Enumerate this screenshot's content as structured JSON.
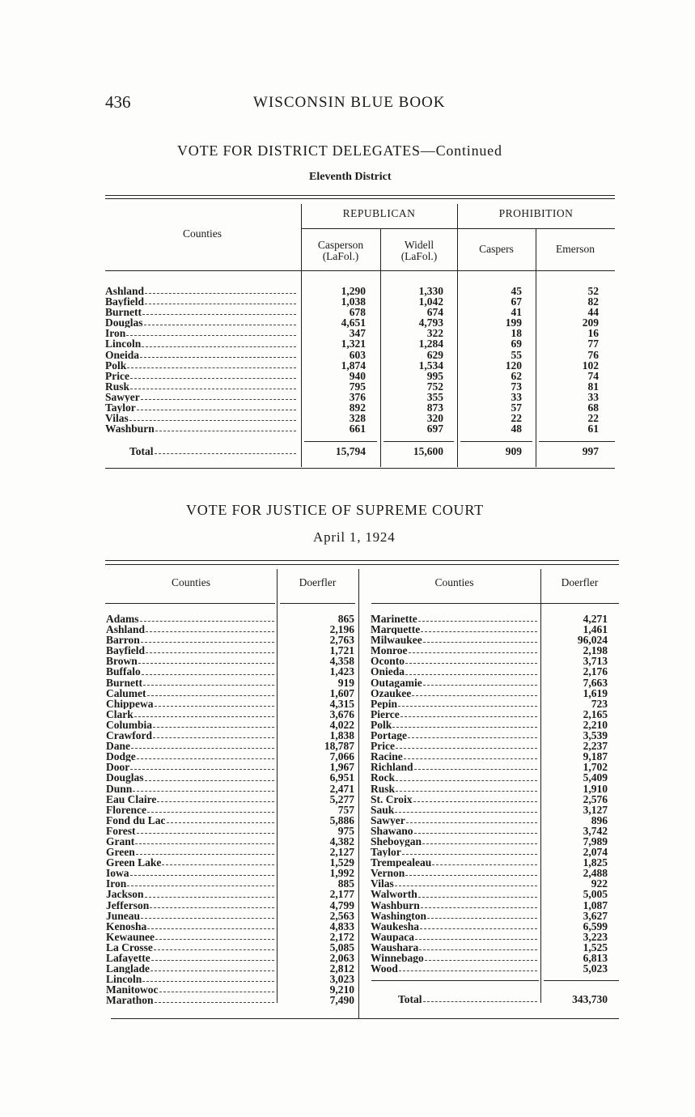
{
  "page_number": "436",
  "running_head": "WISCONSIN BLUE BOOK",
  "delegates": {
    "title": "VOTE FOR DISTRICT DELEGATES—Continued",
    "subtitle": "Eleventh District",
    "headers": {
      "counties": "Counties",
      "republican": "REPUBLICAN",
      "prohibition": "PROHIBITION",
      "casperson": "Casperson (LaFol.)",
      "widell": "Widell (LaFol.)",
      "caspers": "Caspers",
      "emerson": "Emerson"
    },
    "rows": [
      [
        "Ashland",
        "1,290",
        "1,330",
        "45",
        "52"
      ],
      [
        "Bayfield",
        "1,038",
        "1,042",
        "67",
        "82"
      ],
      [
        "Burnett",
        "678",
        "674",
        "41",
        "44"
      ],
      [
        "Douglas",
        "4,651",
        "4,793",
        "199",
        "209"
      ],
      [
        "Iron",
        "347",
        "322",
        "18",
        "16"
      ],
      [
        "Lincoln",
        "1,321",
        "1,284",
        "69",
        "77"
      ],
      [
        "Oneida",
        "603",
        "629",
        "55",
        "76"
      ],
      [
        "Polk",
        "1,874",
        "1,534",
        "120",
        "102"
      ],
      [
        "Price",
        "940",
        "995",
        "62",
        "74"
      ],
      [
        "Rusk",
        "795",
        "752",
        "73",
        "81"
      ],
      [
        "Sawyer",
        "376",
        "355",
        "33",
        "33"
      ],
      [
        "Taylor",
        "892",
        "873",
        "57",
        "68"
      ],
      [
        "Vilas",
        "328",
        "320",
        "22",
        "22"
      ],
      [
        "Washburn",
        "661",
        "697",
        "48",
        "61"
      ]
    ],
    "total": [
      "Total",
      "15,794",
      "15,600",
      "909",
      "997"
    ]
  },
  "justice": {
    "title": "VOTE FOR JUSTICE OF SUPREME COURT",
    "subtitle": "April 1, 1924",
    "headers": {
      "counties": "Counties",
      "doerfler": "Doerfler"
    },
    "left_rows": [
      [
        "Adams",
        "865"
      ],
      [
        "Ashland",
        "2,196"
      ],
      [
        "Barron",
        "2,763"
      ],
      [
        "Bayfield",
        "1,721"
      ],
      [
        "Brown",
        "4,358"
      ],
      [
        "Buffalo",
        "1,423"
      ],
      [
        "Burnett",
        "919"
      ],
      [
        "Calumet",
        "1,607"
      ],
      [
        "Chippewa",
        "4,315"
      ],
      [
        "Clark",
        "3,676"
      ],
      [
        "Columbia",
        "4,022"
      ],
      [
        "Crawford",
        "1,838"
      ],
      [
        "Dane",
        "18,787"
      ],
      [
        "Dodge",
        "7,066"
      ],
      [
        "Door",
        "1,967"
      ],
      [
        "Douglas",
        "6,951"
      ],
      [
        "Dunn",
        "2,471"
      ],
      [
        "Eau Claire",
        "5,277"
      ],
      [
        "Florence",
        "757"
      ],
      [
        "Fond du Lac",
        "5,886"
      ],
      [
        "Forest",
        "975"
      ],
      [
        "Grant",
        "4,382"
      ],
      [
        "Green",
        "2,127"
      ],
      [
        "Green Lake",
        "1,529"
      ],
      [
        "Iowa",
        "1,992"
      ],
      [
        "Iron",
        "885"
      ],
      [
        "Jackson",
        "2,177"
      ],
      [
        "Jefferson",
        "4,799"
      ],
      [
        "Juneau",
        "2,563"
      ],
      [
        "Kenosha",
        "4,833"
      ],
      [
        "Kewaunee",
        "2,172"
      ],
      [
        "La Crosse",
        "5,085"
      ],
      [
        "Lafayette",
        "2,063"
      ],
      [
        "Langlade",
        "2,812"
      ],
      [
        "Lincoln",
        "3,023"
      ],
      [
        "Manitowoc",
        "9,210"
      ],
      [
        "Marathon",
        "7,490"
      ]
    ],
    "right_rows": [
      [
        "Marinette",
        "4,271"
      ],
      [
        "Marquette",
        "1,461"
      ],
      [
        "Milwaukee",
        "96,024"
      ],
      [
        "Monroe",
        "2,198"
      ],
      [
        "Oconto",
        "3,713"
      ],
      [
        "Onieda",
        "2,176"
      ],
      [
        "Outagamie",
        "7,663"
      ],
      [
        "Ozaukee",
        "1,619"
      ],
      [
        "Pepin",
        "723"
      ],
      [
        "Pierce",
        "2,165"
      ],
      [
        "Polk",
        "2,210"
      ],
      [
        "Portage",
        "3,539"
      ],
      [
        "Price",
        "2,237"
      ],
      [
        "Racine",
        "9,187"
      ],
      [
        "Richland",
        "1,702"
      ],
      [
        "Rock",
        "5,409"
      ],
      [
        "Rusk",
        "1,910"
      ],
      [
        "St. Croix",
        "2,576"
      ],
      [
        "Sauk",
        "3,127"
      ],
      [
        "Sawyer",
        "896"
      ],
      [
        "Shawano",
        "3,742"
      ],
      [
        "Sheboygan",
        "7,989"
      ],
      [
        "Taylor",
        "2,074"
      ],
      [
        "Trempealeau",
        "1,825"
      ],
      [
        "Vernon",
        "2,488"
      ],
      [
        "Vilas",
        "922"
      ],
      [
        "Walworth",
        "5,005"
      ],
      [
        "Washburn",
        "1,087"
      ],
      [
        "Washington",
        "3,627"
      ],
      [
        "Waukesha",
        "6,599"
      ],
      [
        "Waupaca",
        "3,223"
      ],
      [
        "Waushara",
        "1,525"
      ],
      [
        "Winnebago",
        "6,813"
      ],
      [
        "Wood",
        "5,023"
      ]
    ],
    "total": [
      "Total",
      "343,730"
    ]
  }
}
